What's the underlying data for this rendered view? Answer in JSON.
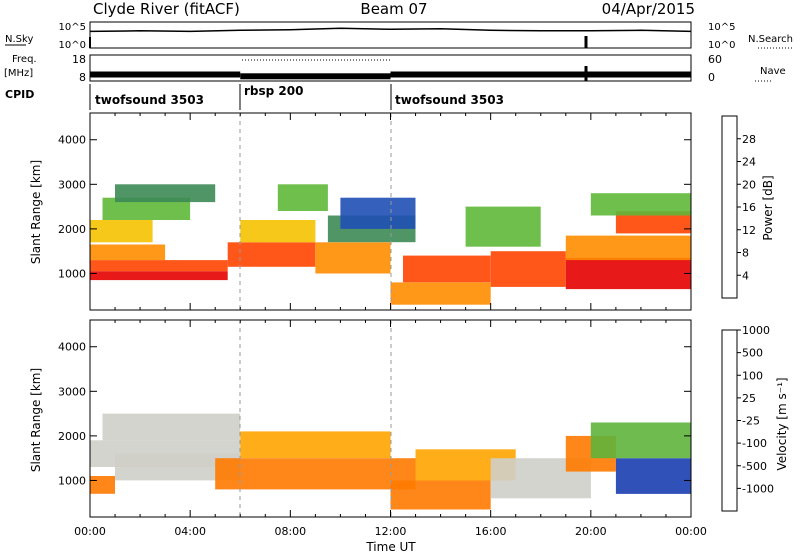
{
  "header": {
    "station": "Clyde River (fitACF)",
    "beam": "Beam 07",
    "date": "04/Apr/2015"
  },
  "panels": {
    "nsky": {
      "label": "N.Sky",
      "top_tick": "10^5",
      "bottom_tick": "10^0",
      "right_label": "N.Search",
      "right_top_tick": "10^5",
      "right_bottom_tick": "10^0"
    },
    "freq": {
      "label_line1": "Freq.",
      "label_line2": "[MHz]",
      "top_tick": "18",
      "bottom_tick": "8",
      "right_label": "Nave",
      "right_top_tick": "60",
      "right_bottom_tick": "0"
    },
    "cpid": {
      "label": "CPID",
      "segments": [
        {
          "name": "twofsound 3503",
          "start_hour": 0,
          "end_hour": 6
        },
        {
          "name": "rbsp 200",
          "start_hour": 6,
          "end_hour": 12
        },
        {
          "name": "twofsound 3503",
          "start_hour": 12,
          "end_hour": 24
        }
      ]
    }
  },
  "colors": {
    "power_scale": [
      "#0018ff",
      "#1f4fb4",
      "#3c8a55",
      "#5fb83a",
      "#f5c200",
      "#ff8c00",
      "#ff4500",
      "#e60000"
    ],
    "velocity_scale": [
      "#1a3fb0",
      "#2f7a5a",
      "#5fb43c",
      "#cfcfc9",
      "#ffa500",
      "#ff7a00",
      "#ff3b00",
      "#e00000"
    ]
  },
  "chart_data": [
    {
      "type": "heatmap",
      "quantity": "Power",
      "xlabel": "",
      "ylabel": "Slant Range [km]",
      "xlim": [
        0,
        24
      ],
      "ylim": [
        180,
        4600
      ],
      "yticks": [
        "1000",
        "2000",
        "3000",
        "4000"
      ],
      "colorbar": {
        "label": "Power [dB]",
        "ticks": [
          "4",
          "8",
          "12",
          "16",
          "20",
          "24",
          "28"
        ],
        "range": [
          0,
          32
        ]
      },
      "bands": [
        {
          "x": [
            0,
            5.5
          ],
          "y": [
            850,
            1050
          ],
          "level": 30
        },
        {
          "x": [
            0,
            5.5
          ],
          "y": [
            1050,
            1300
          ],
          "level": 26
        },
        {
          "x": [
            0,
            3
          ],
          "y": [
            1300,
            1650
          ],
          "level": 22
        },
        {
          "x": [
            0,
            2.5
          ],
          "y": [
            1700,
            2200
          ],
          "level": 18
        },
        {
          "x": [
            0.5,
            4
          ],
          "y": [
            2200,
            2700
          ],
          "level": 14
        },
        {
          "x": [
            1,
            5
          ],
          "y": [
            2600,
            3000
          ],
          "level": 10
        },
        {
          "x": [
            5.5,
            9
          ],
          "y": [
            1150,
            1700
          ],
          "level": 25
        },
        {
          "x": [
            6,
            9
          ],
          "y": [
            1700,
            2200
          ],
          "level": 18
        },
        {
          "x": [
            7.5,
            9.5
          ],
          "y": [
            2400,
            3000
          ],
          "level": 12
        },
        {
          "x": [
            9,
            12
          ],
          "y": [
            1000,
            1700
          ],
          "level": 23
        },
        {
          "x": [
            9.5,
            13
          ],
          "y": [
            1700,
            2300
          ],
          "level": 9
        },
        {
          "x": [
            10,
            13
          ],
          "y": [
            2000,
            2700
          ],
          "level": 6
        },
        {
          "x": [
            12,
            16
          ],
          "y": [
            300,
            800
          ],
          "level": 21
        },
        {
          "x": [
            12.5,
            16
          ],
          "y": [
            800,
            1400
          ],
          "level": 26
        },
        {
          "x": [
            16,
            19
          ],
          "y": [
            700,
            1500
          ],
          "level": 24
        },
        {
          "x": [
            15,
            18
          ],
          "y": [
            1600,
            2500
          ],
          "level": 14
        },
        {
          "x": [
            19,
            24
          ],
          "y": [
            650,
            1350
          ],
          "level": 28
        },
        {
          "x": [
            19,
            24
          ],
          "y": [
            1300,
            1850
          ],
          "level": 22
        },
        {
          "x": [
            21,
            24
          ],
          "y": [
            1900,
            2400
          ],
          "level": 24
        },
        {
          "x": [
            20,
            24
          ],
          "y": [
            2300,
            2800
          ],
          "level": 14
        }
      ]
    },
    {
      "type": "heatmap",
      "quantity": "Velocity",
      "xlabel": "Time UT",
      "ylabel": "Slant Range [km]",
      "xlim": [
        0,
        24
      ],
      "ylim": [
        180,
        4600
      ],
      "xticks": [
        "00:00",
        "04:00",
        "08:00",
        "12:00",
        "16:00",
        "20:00",
        "00:00"
      ],
      "yticks": [
        "1000",
        "2000",
        "3000",
        "4000"
      ],
      "colorbar": {
        "label": "Velocity [m s⁻¹]",
        "ticks": [
          "1000",
          "500",
          "100",
          "25",
          "-25",
          "-100",
          "-500",
          "-1000"
        ],
        "range": [
          -1000,
          1000
        ]
      },
      "bands": [
        {
          "x": [
            0,
            6
          ],
          "y": [
            1300,
            1900
          ],
          "level": 0
        },
        {
          "x": [
            0,
            1
          ],
          "y": [
            700,
            1100
          ],
          "level": -300
        },
        {
          "x": [
            0.5,
            6
          ],
          "y": [
            1900,
            2500
          ],
          "level": 200
        },
        {
          "x": [
            1,
            6
          ],
          "y": [
            1000,
            1600
          ],
          "level": 150
        },
        {
          "x": [
            5,
            13
          ],
          "y": [
            800,
            1500
          ],
          "level": -350
        },
        {
          "x": [
            6,
            12
          ],
          "y": [
            1500,
            2100
          ],
          "level": -200
        },
        {
          "x": [
            12,
            16
          ],
          "y": [
            350,
            1000
          ],
          "level": -300
        },
        {
          "x": [
            13,
            17
          ],
          "y": [
            1000,
            1700
          ],
          "level": -250
        },
        {
          "x": [
            16,
            20
          ],
          "y": [
            600,
            1500
          ],
          "level": 200
        },
        {
          "x": [
            19,
            21
          ],
          "y": [
            1200,
            2000
          ],
          "level": -350
        },
        {
          "x": [
            21,
            24
          ],
          "y": [
            700,
            1500
          ],
          "level": 900
        },
        {
          "x": [
            20,
            24
          ],
          "y": [
            1500,
            2300
          ],
          "level": 300
        }
      ]
    },
    {
      "type": "line",
      "quantity": "N.Sky",
      "x": [
        0,
        2,
        4,
        6,
        8,
        10,
        12,
        14,
        16,
        18,
        20,
        22,
        24
      ],
      "values": [
        3.2,
        3.3,
        3.2,
        3.4,
        3.5,
        3.8,
        3.6,
        3.7,
        3.4,
        3.3,
        3.3,
        3.4,
        3.2
      ],
      "ylim": [
        0,
        5
      ]
    },
    {
      "type": "line",
      "quantity": "Freq.",
      "segments": [
        {
          "x": [
            0,
            6
          ],
          "value": 10.5
        },
        {
          "x": [
            6,
            12
          ],
          "value": 9.8
        },
        {
          "x": [
            12,
            24
          ],
          "value": 10.5
        }
      ],
      "ylim": [
        8,
        18
      ]
    }
  ]
}
